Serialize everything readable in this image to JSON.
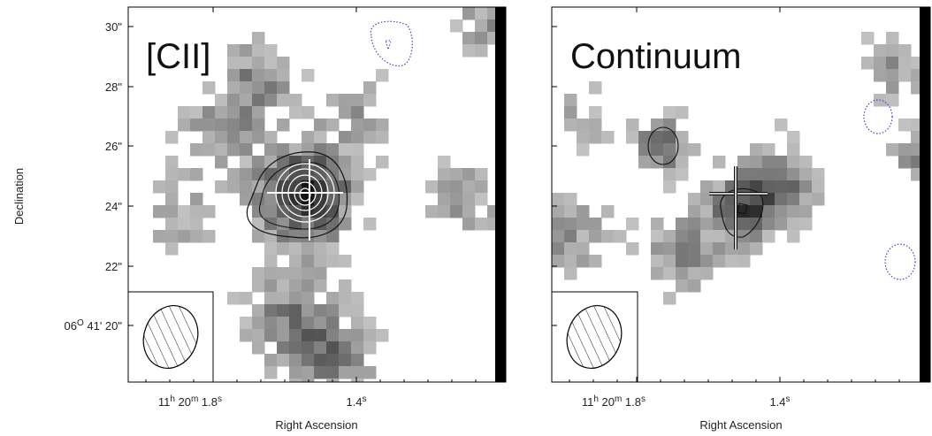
{
  "y_axis_label": "Declination",
  "panels": [
    {
      "label": "[CII]",
      "x_axis_label": "Right Ascension",
      "y_ticks": [
        {
          "parts": [
            {
              "t": "30\""
            }
          ]
        },
        {
          "parts": [
            {
              "t": "28\""
            }
          ]
        },
        {
          "parts": [
            {
              "t": "26\""
            }
          ]
        },
        {
          "parts": [
            {
              "t": "24\""
            }
          ]
        },
        {
          "parts": [
            {
              "t": "22\""
            }
          ]
        },
        {
          "parts": [
            {
              "t": "06"
            },
            {
              "sup": "O"
            },
            {
              "t": " 41' 20\""
            }
          ]
        }
      ],
      "x_ticks": [
        {
          "parts": [
            {
              "t": "11"
            },
            {
              "sup": "h"
            },
            {
              "t": " 20"
            },
            {
              "sup": "m"
            },
            {
              "t": " 1.8"
            },
            {
              "sup": "s"
            }
          ]
        },
        {
          "parts": [
            {
              "t": "1.4"
            },
            {
              "sup": "s"
            }
          ]
        }
      ]
    },
    {
      "label": "Continuum",
      "x_axis_label": "Right Ascension",
      "x_ticks": [
        {
          "parts": [
            {
              "t": "11"
            },
            {
              "sup": "h"
            },
            {
              "t": " 20"
            },
            {
              "sup": "m"
            },
            {
              "t": " 1.8"
            },
            {
              "sup": "s"
            }
          ]
        },
        {
          "parts": [
            {
              "t": "1.4"
            },
            {
              "sup": "s"
            }
          ]
        }
      ]
    }
  ]
}
